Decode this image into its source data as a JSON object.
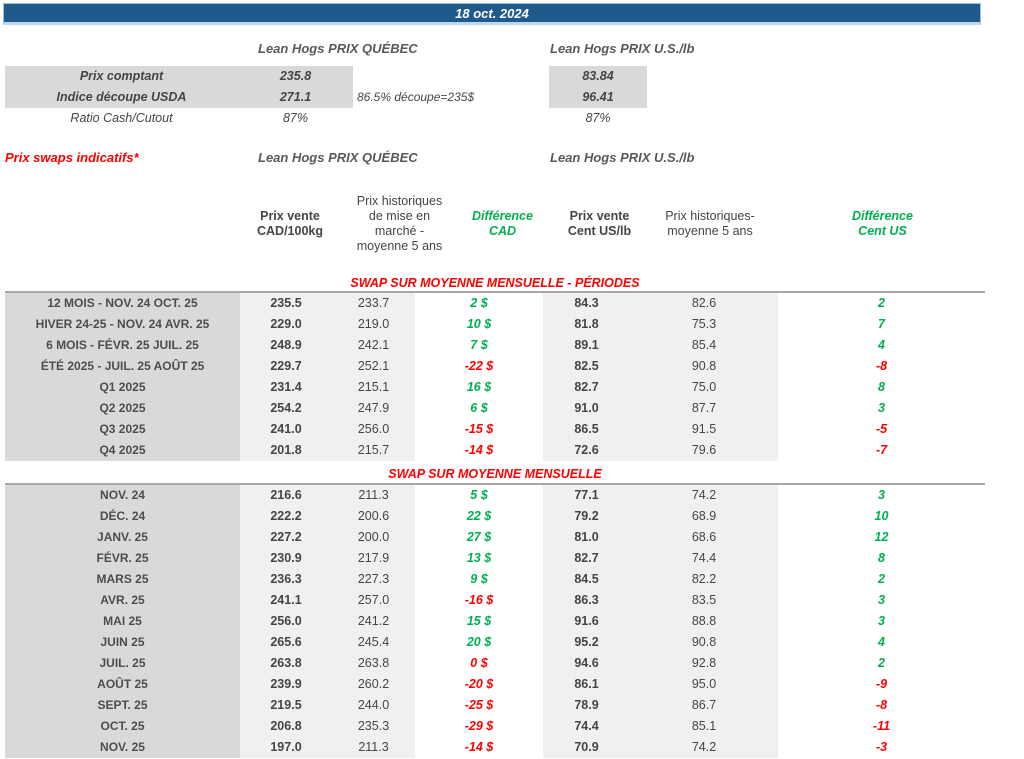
{
  "banner": {
    "date": "18 oct. 2024"
  },
  "market_headers": {
    "quebec": "Lean Hogs PRIX QUÉBEC",
    "us": "Lean Hogs PRIX U.S./lb"
  },
  "spot_table": {
    "rows": [
      {
        "label": "Prix comptant",
        "quebec": "235.8",
        "note": "",
        "us": "83.84"
      },
      {
        "label": "Indice découpe USDA",
        "quebec": "271.1",
        "note": "86.5% découpe=235$",
        "us": "96.41"
      },
      {
        "label": "Ratio Cash/Cutout",
        "quebec": "87%",
        "note": "",
        "us": "87%"
      }
    ]
  },
  "swaps_title": "Prix swaps indicatifs*",
  "column_headers": {
    "cad_sell": "Prix vente\nCAD/100kg",
    "cad_hist": "Prix historiques\nde mise en\nmarché -\nmoyenne 5 ans",
    "diff_cad": "Différence\nCAD",
    "us_sell": "Prix vente\nCent US/lb",
    "us_hist": "Prix historiques-\nmoyenne 5 ans",
    "diff_us": "Différence\nCent US"
  },
  "swap_sections": [
    {
      "title": "SWAP SUR MOYENNE MENSUELLE - PÉRIODES",
      "rows": [
        {
          "label": "12 MOIS - NOV. 24 OCT. 25",
          "cad_sell": "235.5",
          "cad_hist": "233.7",
          "diff_cad": "2 $",
          "us_sell": "84.3",
          "us_hist": "82.6",
          "diff_us": "2"
        },
        {
          "label": "HIVER 24-25 -  NOV. 24 AVR. 25",
          "cad_sell": "229.0",
          "cad_hist": "219.0",
          "diff_cad": "10 $",
          "us_sell": "81.8",
          "us_hist": "75.3",
          "diff_us": "7"
        },
        {
          "label": "6 MOIS -  FÉVR. 25 JUIL. 25",
          "cad_sell": "248.9",
          "cad_hist": "242.1",
          "diff_cad": "7 $",
          "us_sell": "89.1",
          "us_hist": "85.4",
          "diff_us": "4"
        },
        {
          "label": "ÉTÉ 2025 - JUIL. 25 AOÛT 25",
          "cad_sell": "229.7",
          "cad_hist": "252.1",
          "diff_cad": "-22 $",
          "us_sell": "82.5",
          "us_hist": "90.8",
          "diff_us": "-8"
        },
        {
          "label": "Q1 2025",
          "cad_sell": "231.4",
          "cad_hist": "215.1",
          "diff_cad": "16 $",
          "us_sell": "82.7",
          "us_hist": "75.0",
          "diff_us": "8"
        },
        {
          "label": "Q2 2025",
          "cad_sell": "254.2",
          "cad_hist": "247.9",
          "diff_cad": "6 $",
          "us_sell": "91.0",
          "us_hist": "87.7",
          "diff_us": "3"
        },
        {
          "label": "Q3 2025",
          "cad_sell": "241.0",
          "cad_hist": "256.0",
          "diff_cad": "-15 $",
          "us_sell": "86.5",
          "us_hist": "91.5",
          "diff_us": "-5"
        },
        {
          "label": "Q4 2025",
          "cad_sell": "201.8",
          "cad_hist": "215.7",
          "diff_cad": "-14 $",
          "us_sell": "72.6",
          "us_hist": "79.6",
          "diff_us": "-7"
        }
      ]
    },
    {
      "title": "SWAP SUR MOYENNE MENSUELLE",
      "rows": [
        {
          "label": "NOV. 24",
          "cad_sell": "216.6",
          "cad_hist": "211.3",
          "diff_cad": "5 $",
          "us_sell": "77.1",
          "us_hist": "74.2",
          "diff_us": "3"
        },
        {
          "label": "DÉC. 24",
          "cad_sell": "222.2",
          "cad_hist": "200.6",
          "diff_cad": "22 $",
          "us_sell": "79.2",
          "us_hist": "68.9",
          "diff_us": "10"
        },
        {
          "label": "JANV. 25",
          "cad_sell": "227.2",
          "cad_hist": "200.0",
          "diff_cad": "27 $",
          "us_sell": "81.0",
          "us_hist": "68.6",
          "diff_us": "12"
        },
        {
          "label": "FÉVR. 25",
          "cad_sell": "230.9",
          "cad_hist": "217.9",
          "diff_cad": "13 $",
          "us_sell": "82.7",
          "us_hist": "74.4",
          "diff_us": "8"
        },
        {
          "label": "MARS 25",
          "cad_sell": "236.3",
          "cad_hist": "227.3",
          "diff_cad": "9 $",
          "us_sell": "84.5",
          "us_hist": "82.2",
          "diff_us": "2"
        },
        {
          "label": "AVR. 25",
          "cad_sell": "241.1",
          "cad_hist": "257.0",
          "diff_cad": "-16 $",
          "us_sell": "86.3",
          "us_hist": "83.5",
          "diff_us": "3"
        },
        {
          "label": "MAI 25",
          "cad_sell": "256.0",
          "cad_hist": "241.2",
          "diff_cad": "15 $",
          "us_sell": "91.6",
          "us_hist": "88.8",
          "diff_us": "3"
        },
        {
          "label": "JUIN 25",
          "cad_sell": "265.6",
          "cad_hist": "245.4",
          "diff_cad": "20 $",
          "us_sell": "95.2",
          "us_hist": "90.8",
          "diff_us": "4"
        },
        {
          "label": "JUIL. 25",
          "cad_sell": "263.8",
          "cad_hist": "263.8",
          "diff_cad": "0 $",
          "us_sell": "94.6",
          "us_hist": "92.8",
          "diff_us": "2"
        },
        {
          "label": "AOÛT 25",
          "cad_sell": "239.9",
          "cad_hist": "260.2",
          "diff_cad": "-20 $",
          "us_sell": "86.1",
          "us_hist": "95.0",
          "diff_us": "-9"
        },
        {
          "label": "SEPT. 25",
          "cad_sell": "219.5",
          "cad_hist": "244.0",
          "diff_cad": "-25 $",
          "us_sell": "78.9",
          "us_hist": "86.7",
          "diff_us": "-8"
        },
        {
          "label": "OCT. 25",
          "cad_sell": "206.8",
          "cad_hist": "235.3",
          "diff_cad": "-29 $",
          "us_sell": "74.4",
          "us_hist": "85.1",
          "diff_us": "-11"
        },
        {
          "label": "NOV. 25",
          "cad_sell": "197.0",
          "cad_hist": "211.3",
          "diff_cad": "-14 $",
          "us_sell": "70.9",
          "us_hist": "74.2",
          "diff_us": "-3"
        }
      ]
    }
  ],
  "colors": {
    "banner_blue": "#1E5A8B",
    "positive_green": "#00B050",
    "negative_red": "#FF0000",
    "label_gray_bg": "#D9D9D9",
    "value_gray_bg": "#F0F0F0"
  }
}
